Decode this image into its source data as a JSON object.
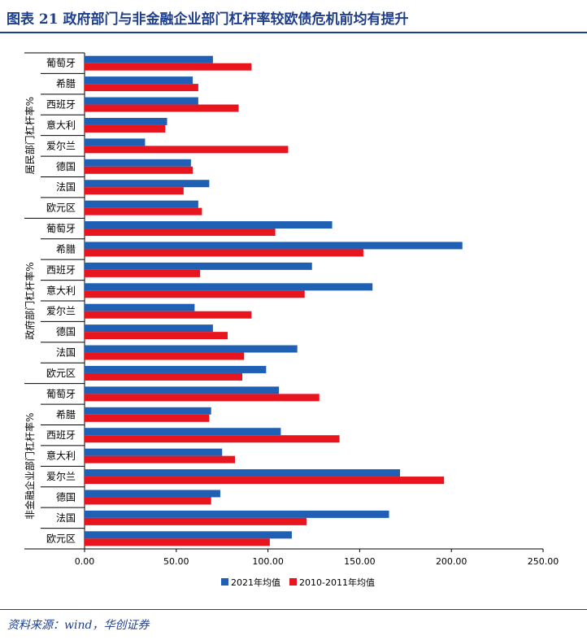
{
  "page": {
    "title": "图表 21   政府部门与非金融企业部门杠杆率较欧债危机前均有提升",
    "source": "资料来源：wind，华创证券"
  },
  "colors": {
    "series1": "#1f5fb4",
    "series2": "#e8141e",
    "axis": "#000000"
  },
  "chart_data": {
    "type": "bar",
    "orientation": "horizontal",
    "title": "",
    "xlim": [
      0,
      250
    ],
    "xticks": [
      "0.00",
      "50.00",
      "100.00",
      "150.00",
      "200.00",
      "250.00"
    ],
    "groups": [
      {
        "label": "居民部门杠杆率%",
        "categories": [
          "葡萄牙",
          "希腊",
          "西班牙",
          "意大利",
          "爱尔兰",
          "德国",
          "法国",
          "欧元区"
        ]
      },
      {
        "label": "政府部门杠杆率%",
        "categories": [
          "葡萄牙",
          "希腊",
          "西班牙",
          "意大利",
          "爱尔兰",
          "德国",
          "法国",
          "欧元区"
        ]
      },
      {
        "label": "非金融企业部门杠杆率%",
        "categories": [
          "葡萄牙",
          "希腊",
          "西班牙",
          "意大利",
          "爱尔兰",
          "德国",
          "法国",
          "欧元区"
        ]
      }
    ],
    "series": [
      {
        "name": "2021年均值",
        "values": [
          70,
          59,
          62,
          45,
          33,
          58,
          68,
          62,
          135,
          206,
          124,
          157,
          60,
          70,
          116,
          99,
          106,
          69,
          107,
          75,
          172,
          74,
          166,
          113
        ]
      },
      {
        "name": "2010-2011年均值",
        "values": [
          91,
          62,
          84,
          44,
          111,
          59,
          54,
          64,
          104,
          152,
          63,
          120,
          91,
          78,
          87,
          86,
          128,
          68,
          139,
          82,
          196,
          69,
          121,
          101
        ]
      }
    ],
    "legend_position": "bottom"
  }
}
